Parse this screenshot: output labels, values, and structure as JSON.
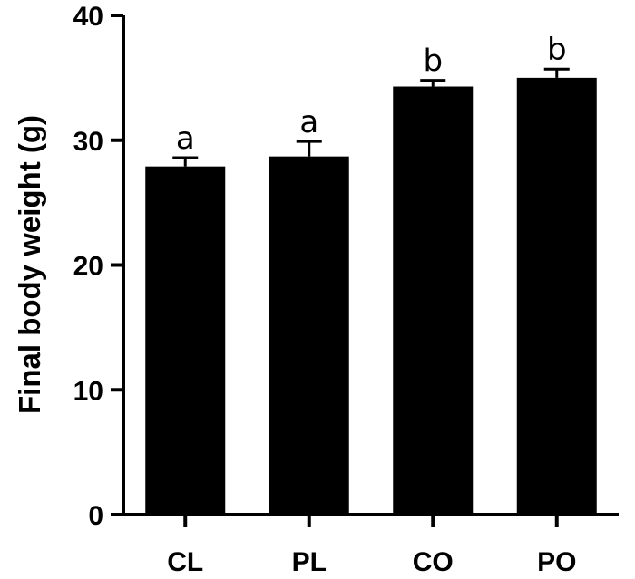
{
  "chart_data": {
    "type": "bar",
    "ylabel": "Final body weight (g)",
    "xlabel": "",
    "categories": [
      "CL",
      "PL",
      "CO",
      "PO"
    ],
    "values": [
      27.9,
      28.7,
      34.3,
      35.0
    ],
    "errors": [
      0.7,
      1.2,
      0.5,
      0.7
    ],
    "significance_letters": [
      "a",
      "a",
      "b",
      "b"
    ],
    "ylim": [
      0,
      40
    ],
    "yticks": [
      0,
      10,
      20,
      30,
      40
    ],
    "ytick_labels": [
      "0",
      "10",
      "20",
      "30",
      "40"
    ],
    "bar_color": "#000000",
    "grid": false,
    "legend": "none"
  }
}
